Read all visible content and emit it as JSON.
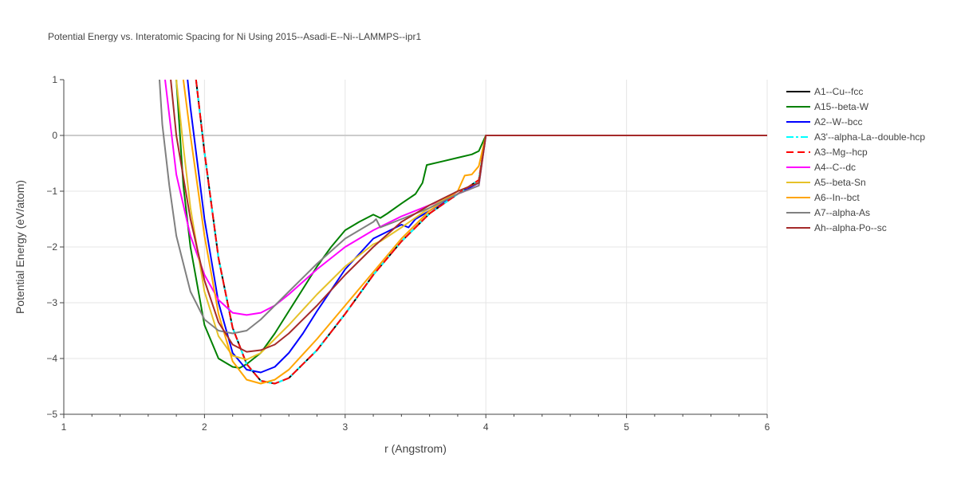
{
  "chart_data": {
    "type": "line",
    "title": "Potential Energy vs. Interatomic Spacing for Ni Using 2015--Asadi-E--Ni--LAMMPS--ipr1",
    "xlabel": "r (Angstrom)",
    "ylabel": "Potential Energy (eV/atom)",
    "xlim": [
      1,
      6
    ],
    "ylim": [
      -5,
      1
    ],
    "xticks": [
      1,
      2,
      3,
      4,
      5,
      6
    ],
    "yticks": [
      1,
      0,
      -1,
      -2,
      -3,
      -4,
      -5
    ],
    "grid": true,
    "legend_position": "top-right",
    "series": [
      {
        "name": "A1--Cu--fcc",
        "color": "#000000",
        "dash": "solid",
        "x": [
          1.94,
          2.0,
          2.1,
          2.2,
          2.3,
          2.4,
          2.5,
          2.6,
          2.8,
          3.0,
          3.2,
          3.4,
          3.6,
          3.8,
          3.95,
          4.0,
          6.0
        ],
        "y": [
          1.0,
          -0.3,
          -2.2,
          -3.45,
          -4.1,
          -4.4,
          -4.45,
          -4.35,
          -3.85,
          -3.2,
          -2.5,
          -1.9,
          -1.4,
          -1.05,
          -0.8,
          0.0,
          0.0
        ]
      },
      {
        "name": "A15--beta-W",
        "color": "#008000",
        "dash": "solid",
        "x": [
          1.8,
          1.85,
          1.9,
          2.0,
          2.1,
          2.2,
          2.25,
          2.3,
          2.4,
          2.5,
          2.6,
          2.7,
          2.8,
          2.9,
          3.0,
          3.1,
          3.2,
          3.25,
          3.3,
          3.4,
          3.5,
          3.55,
          3.58,
          3.7,
          3.8,
          3.9,
          3.95,
          4.0,
          6.0
        ],
        "y": [
          1.0,
          -0.9,
          -2.0,
          -3.4,
          -4.0,
          -4.15,
          -4.17,
          -4.1,
          -3.9,
          -3.55,
          -3.15,
          -2.75,
          -2.35,
          -2.0,
          -1.7,
          -1.55,
          -1.42,
          -1.48,
          -1.4,
          -1.22,
          -1.05,
          -0.85,
          -0.53,
          -0.46,
          -0.4,
          -0.34,
          -0.28,
          0.0,
          0.0
        ]
      },
      {
        "name": "A2--W--bcc",
        "color": "#0000ff",
        "dash": "solid",
        "x": [
          1.88,
          1.9,
          2.0,
          2.1,
          2.2,
          2.3,
          2.4,
          2.5,
          2.6,
          2.7,
          2.8,
          3.0,
          3.2,
          3.4,
          3.45,
          3.5,
          3.6,
          3.8,
          3.95,
          4.0,
          6.0
        ],
        "y": [
          1.0,
          0.5,
          -1.5,
          -3.0,
          -3.9,
          -4.2,
          -4.25,
          -4.15,
          -3.9,
          -3.55,
          -3.15,
          -2.4,
          -1.85,
          -1.6,
          -1.65,
          -1.5,
          -1.35,
          -1.05,
          -0.85,
          0.0,
          0.0
        ]
      },
      {
        "name": "A3'--alpha-La--double-hcp",
        "color": "#00ffff",
        "dash": "dashdot",
        "x": [
          1.94,
          2.0,
          2.1,
          2.2,
          2.3,
          2.4,
          2.5,
          2.6,
          2.8,
          3.0,
          3.2,
          3.4,
          3.6,
          3.8,
          3.95,
          4.0,
          6.0
        ],
        "y": [
          1.0,
          -0.3,
          -2.2,
          -3.45,
          -4.1,
          -4.4,
          -4.45,
          -4.35,
          -3.85,
          -3.2,
          -2.5,
          -1.9,
          -1.4,
          -1.05,
          -0.8,
          0.0,
          0.0
        ]
      },
      {
        "name": "A3--Mg--hcp",
        "color": "#ff0000",
        "dash": "dash",
        "x": [
          1.94,
          2.0,
          2.1,
          2.2,
          2.3,
          2.4,
          2.5,
          2.6,
          2.8,
          3.0,
          3.2,
          3.4,
          3.6,
          3.8,
          3.95,
          4.0,
          6.0
        ],
        "y": [
          1.0,
          -0.3,
          -2.2,
          -3.45,
          -4.1,
          -4.4,
          -4.45,
          -4.35,
          -3.85,
          -3.2,
          -2.5,
          -1.9,
          -1.4,
          -1.05,
          -0.8,
          0.0,
          0.0
        ]
      },
      {
        "name": "A4--C--dc",
        "color": "#ff00ff",
        "dash": "solid",
        "x": [
          1.72,
          1.8,
          1.9,
          2.0,
          2.1,
          2.2,
          2.3,
          2.4,
          2.5,
          2.6,
          2.8,
          3.0,
          3.2,
          3.4,
          3.6,
          3.8,
          3.95,
          4.0,
          6.0
        ],
        "y": [
          1.0,
          -0.7,
          -1.8,
          -2.5,
          -2.95,
          -3.18,
          -3.22,
          -3.18,
          -3.05,
          -2.85,
          -2.4,
          -2.0,
          -1.7,
          -1.45,
          -1.25,
          -1.05,
          -0.9,
          0.0,
          0.0
        ]
      },
      {
        "name": "A5--beta-Sn",
        "color": "#e6c229",
        "dash": "solid",
        "x": [
          1.8,
          1.85,
          1.9,
          2.0,
          2.1,
          2.2,
          2.3,
          2.4,
          2.6,
          2.8,
          3.0,
          3.2,
          3.25,
          3.4,
          3.6,
          3.8,
          3.95,
          4.0,
          6.0
        ],
        "y": [
          1.0,
          -0.2,
          -1.3,
          -2.8,
          -3.6,
          -3.95,
          -4.02,
          -3.9,
          -3.4,
          -2.85,
          -2.35,
          -1.95,
          -1.9,
          -1.65,
          -1.3,
          -1.0,
          -0.85,
          0.0,
          0.0
        ]
      },
      {
        "name": "A6--In--bct",
        "color": "#ffa500",
        "dash": "solid",
        "x": [
          1.85,
          1.9,
          2.0,
          2.1,
          2.2,
          2.3,
          2.4,
          2.5,
          2.6,
          2.8,
          3.0,
          3.2,
          3.4,
          3.6,
          3.8,
          3.85,
          3.9,
          3.95,
          4.0,
          6.0
        ],
        "y": [
          1.0,
          0.0,
          -1.8,
          -3.2,
          -4.05,
          -4.38,
          -4.45,
          -4.38,
          -4.2,
          -3.65,
          -3.05,
          -2.45,
          -1.85,
          -1.35,
          -1.0,
          -0.72,
          -0.7,
          -0.55,
          0.0,
          0.0
        ]
      },
      {
        "name": "A7--alpha-As",
        "color": "#808080",
        "dash": "solid",
        "x": [
          1.68,
          1.7,
          1.75,
          1.8,
          1.9,
          2.0,
          2.1,
          2.2,
          2.3,
          2.4,
          2.6,
          2.8,
          3.0,
          3.2,
          3.22,
          3.25,
          3.3,
          3.4,
          3.6,
          3.8,
          3.95,
          4.0,
          6.0
        ],
        "y": [
          1.0,
          0.2,
          -0.9,
          -1.8,
          -2.8,
          -3.3,
          -3.5,
          -3.55,
          -3.5,
          -3.3,
          -2.8,
          -2.3,
          -1.85,
          -1.55,
          -1.5,
          -1.65,
          -1.6,
          -1.5,
          -1.3,
          -1.05,
          -0.9,
          0.0,
          0.0
        ]
      },
      {
        "name": "Ah--alpha-Po--sc",
        "color": "#a52a2a",
        "dash": "solid",
        "x": [
          1.76,
          1.8,
          1.9,
          2.0,
          2.1,
          2.2,
          2.3,
          2.4,
          2.5,
          2.6,
          2.8,
          3.0,
          3.2,
          3.4,
          3.6,
          3.8,
          3.95,
          4.0,
          6.0
        ],
        "y": [
          1.0,
          0.0,
          -1.5,
          -2.6,
          -3.35,
          -3.75,
          -3.88,
          -3.85,
          -3.75,
          -3.55,
          -3.05,
          -2.5,
          -2.0,
          -1.55,
          -1.25,
          -1.0,
          -0.85,
          0.0,
          0.0
        ]
      }
    ]
  }
}
